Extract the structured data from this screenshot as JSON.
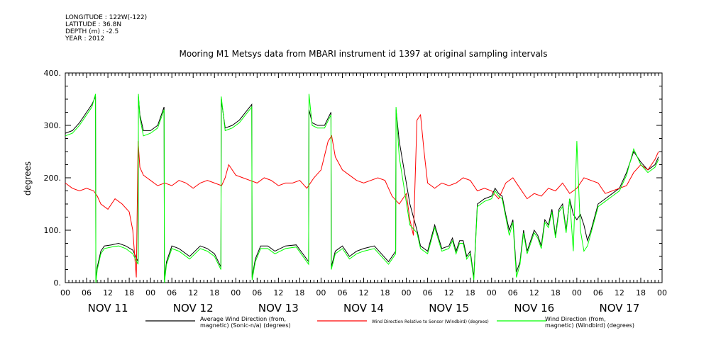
{
  "meta": {
    "longitude": "LONGITUDE : 122W(-122)",
    "latitude": "LATITUDE : 36.8N",
    "depth": "DEPTH (m) : -2.5",
    "year": "YEAR : 2012"
  },
  "chart_data": {
    "type": "line",
    "title": "Mooring M1 Metsys data from MBARI instrument id 1397 at original sampling intervals",
    "ylabel": "degrees",
    "xlabel": "",
    "ylim": [
      0,
      400
    ],
    "yticks": [
      0,
      100,
      200,
      300,
      400
    ],
    "ytick_labels": [
      "0.",
      "100.",
      "200.",
      "300.",
      "400."
    ],
    "xlim_hours": [
      0,
      168
    ],
    "x_hour_labels": [
      "00",
      "06",
      "12",
      "18",
      "00",
      "06",
      "12",
      "18",
      "00",
      "06",
      "12",
      "18",
      "00",
      "06",
      "12",
      "18",
      "00",
      "06",
      "12",
      "18",
      "00",
      "06",
      "12",
      "18",
      "00",
      "06",
      "12",
      "18",
      "00"
    ],
    "day_labels": [
      "NOV 11",
      "NOV 12",
      "NOV 13",
      "NOV 14",
      "NOV 15",
      "NOV 16",
      "NOV 17"
    ],
    "grid": false,
    "legend_position": "bottom",
    "series": [
      {
        "name": "Average Wind Direction (from, magnetic) (Sonic-n/a) (degrees)",
        "legend_lines": [
          "Average Wind Direction (from,",
          "magnetic) (Sonic-n/a) (degrees)"
        ],
        "color": "#000000",
        "x": [
          0,
          2,
          4,
          6,
          7.5,
          8.5,
          8.6,
          9,
          10,
          11,
          13,
          15,
          17,
          19,
          20.5,
          20.6,
          21,
          22,
          24,
          26,
          27.8,
          27.9,
          28.5,
          30,
          32,
          35,
          38,
          40,
          42,
          43.8,
          43.9,
          45,
          47,
          49,
          52.5,
          52.6,
          53.5,
          55,
          57,
          59,
          62,
          65,
          68.5,
          68.6,
          69.5,
          71,
          73,
          74.8,
          74.9,
          76,
          78,
          80,
          82,
          84,
          87,
          91,
          93,
          93.1,
          94,
          97,
          99,
          100,
          102,
          104,
          106,
          108,
          109,
          110,
          111,
          112,
          113,
          114,
          115,
          116,
          118,
          120,
          121,
          122,
          123,
          124,
          125,
          126,
          127,
          128,
          129,
          130,
          131,
          132,
          133,
          134,
          135,
          136,
          137,
          138,
          139,
          140,
          141,
          142,
          143,
          144,
          145,
          146,
          147,
          148,
          150,
          152,
          154,
          156,
          158,
          160,
          162,
          164,
          166,
          167
        ],
        "y": [
          285,
          290,
          305,
          325,
          340,
          355,
          5,
          30,
          60,
          70,
          72,
          75,
          70,
          62,
          40,
          355,
          320,
          290,
          290,
          300,
          335,
          5,
          40,
          70,
          65,
          50,
          70,
          65,
          55,
          30,
          350,
          295,
          300,
          310,
          340,
          10,
          45,
          70,
          70,
          60,
          70,
          72,
          40,
          330,
          305,
          300,
          300,
          325,
          30,
          60,
          70,
          50,
          60,
          65,
          70,
          40,
          60,
          330,
          270,
          150,
          100,
          70,
          60,
          110,
          65,
          70,
          85,
          60,
          80,
          80,
          50,
          60,
          10,
          150,
          160,
          165,
          180,
          170,
          165,
          130,
          100,
          120,
          20,
          40,
          100,
          60,
          80,
          100,
          90,
          70,
          120,
          110,
          140,
          90,
          140,
          150,
          100,
          160,
          130,
          120,
          130,
          110,
          80,
          100,
          150,
          160,
          170,
          180,
          210,
          250,
          230,
          215,
          225,
          240
        ]
      },
      {
        "name": "Wind Direction Relative to Sensor (Windbird) (degrees)",
        "legend_lines": [
          "Wind Direction Relative to Sensor (Windbird) (degrees)"
        ],
        "color": "#ff0000",
        "x": [
          0,
          2,
          4,
          6,
          8,
          9,
          10,
          12,
          14,
          16,
          18,
          19,
          20,
          20.5,
          21,
          22,
          23,
          24,
          26,
          28,
          30,
          32,
          34,
          36,
          38,
          40,
          42,
          44,
          45,
          46,
          48,
          50,
          52,
          54,
          56,
          58,
          60,
          62,
          64,
          66,
          68,
          70,
          72,
          74,
          75,
          76,
          78,
          80,
          82,
          84,
          86,
          88,
          90,
          92,
          94,
          96,
          97,
          98,
          99,
          100,
          101,
          102,
          104,
          106,
          108,
          110,
          112,
          114,
          116,
          118,
          120,
          122,
          124,
          126,
          128,
          130,
          132,
          134,
          136,
          138,
          140,
          142,
          144,
          146,
          148,
          150,
          152,
          154,
          156,
          158,
          160,
          162,
          164,
          166,
          167
        ],
        "y": [
          190,
          180,
          175,
          180,
          175,
          165,
          150,
          140,
          160,
          150,
          135,
          100,
          10,
          270,
          220,
          205,
          200,
          195,
          185,
          190,
          185,
          195,
          190,
          180,
          190,
          195,
          190,
          185,
          200,
          225,
          205,
          200,
          195,
          190,
          200,
          195,
          185,
          190,
          190,
          195,
          180,
          200,
          215,
          270,
          280,
          240,
          215,
          205,
          195,
          190,
          195,
          200,
          195,
          165,
          150,
          170,
          120,
          90,
          310,
          320,
          250,
          190,
          180,
          190,
          185,
          190,
          200,
          195,
          175,
          180,
          175,
          160,
          190,
          200,
          180,
          160,
          170,
          165,
          180,
          175,
          190,
          170,
          180,
          200,
          195,
          190,
          170,
          175,
          180,
          185,
          210,
          225,
          215,
          235,
          250
        ]
      },
      {
        "name": "Wind Direction (from, magnetic) (Windbird) (degrees)",
        "legend_lines": [
          "Wind Direction (from,",
          "magnetic) (Windbird) (degrees)"
        ],
        "color": "#00ff00",
        "x": [
          0,
          2,
          4,
          6,
          7.5,
          8.5,
          8.6,
          9,
          10,
          11,
          13,
          15,
          17,
          19,
          20.5,
          20.6,
          21,
          22,
          24,
          26,
          27.8,
          27.9,
          28.5,
          30,
          32,
          35,
          38,
          40,
          42,
          43.8,
          43.9,
          45,
          47,
          49,
          52.5,
          52.6,
          53.5,
          55,
          57,
          59,
          62,
          65,
          68.5,
          68.6,
          69.5,
          71,
          73,
          74.8,
          74.9,
          76,
          78,
          80,
          82,
          84,
          87,
          91,
          93,
          93.1,
          94,
          97,
          99,
          100,
          102,
          104,
          106,
          108,
          109,
          110,
          111,
          112,
          113,
          114,
          115,
          116,
          118,
          120,
          121,
          122,
          123,
          124,
          125,
          126,
          127,
          128,
          129,
          130,
          131,
          132,
          133,
          134,
          135,
          136,
          137,
          138,
          139,
          140,
          141,
          142,
          143,
          144,
          145,
          146,
          147,
          148,
          150,
          152,
          154,
          156,
          158,
          160,
          162,
          164,
          166,
          167
        ],
        "y": [
          280,
          285,
          300,
          320,
          335,
          360,
          0,
          25,
          55,
          65,
          68,
          70,
          65,
          55,
          35,
          360,
          315,
          280,
          285,
          295,
          330,
          0,
          35,
          65,
          60,
          45,
          65,
          60,
          50,
          25,
          355,
          290,
          295,
          305,
          335,
          5,
          40,
          65,
          65,
          55,
          65,
          68,
          35,
          360,
          300,
          295,
          295,
          320,
          25,
          55,
          65,
          45,
          55,
          60,
          65,
          35,
          55,
          335,
          240,
          110,
          95,
          65,
          55,
          105,
          60,
          65,
          80,
          55,
          75,
          75,
          45,
          55,
          5,
          145,
          155,
          160,
          175,
          165,
          160,
          125,
          90,
          115,
          10,
          35,
          95,
          55,
          75,
          95,
          85,
          65,
          115,
          105,
          135,
          85,
          135,
          145,
          95,
          160,
          60,
          270,
          100,
          60,
          70,
          95,
          145,
          155,
          165,
          175,
          205,
          255,
          225,
          210,
          220,
          235
        ]
      }
    ]
  }
}
